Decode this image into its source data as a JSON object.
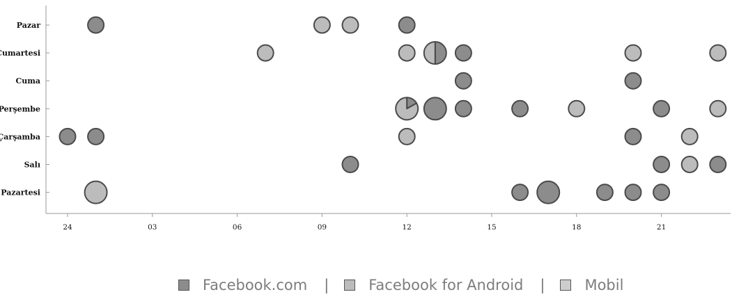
{
  "chart_data": {
    "type": "scatter",
    "title": "",
    "xlabel": "",
    "ylabel": "",
    "x_ticks": [
      "24",
      "03",
      "06",
      "09",
      "12",
      "15",
      "18",
      "21"
    ],
    "x_tick_hours": [
      0,
      3,
      6,
      9,
      12,
      15,
      18,
      21
    ],
    "xlim": [
      -0.8,
      23.8
    ],
    "y_categories": [
      "Pazar",
      "Cumartesi",
      "Cuma",
      "Perşembe",
      "Çarşamba",
      "Salı",
      "Pazartesi"
    ],
    "grid": false,
    "legend_position": "bottom",
    "colors": {
      "Facebook.com": "#8c8c8c",
      "Facebook for Android": "#bcbcbc",
      "Mobil": "#cdcdcd",
      "outline": "#4a4a4a"
    },
    "series": [
      {
        "name": "Facebook.com",
        "points": [
          {
            "day": "Pazar",
            "hour": 1,
            "count": 1
          },
          {
            "day": "Pazar",
            "hour": 12,
            "count": 1
          },
          {
            "day": "Cumartesi",
            "hour": 14,
            "count": 1
          },
          {
            "day": "Cuma",
            "hour": 14,
            "count": 1
          },
          {
            "day": "Cuma",
            "hour": 20,
            "count": 1
          },
          {
            "day": "Perşembe",
            "hour": 13,
            "count": 2
          },
          {
            "day": "Perşembe",
            "hour": 14,
            "count": 1
          },
          {
            "day": "Perşembe",
            "hour": 16,
            "count": 1
          },
          {
            "day": "Perşembe",
            "hour": 21,
            "count": 1
          },
          {
            "day": "Çarşamba",
            "hour": 0,
            "count": 1
          },
          {
            "day": "Çarşamba",
            "hour": 1,
            "count": 1
          },
          {
            "day": "Çarşamba",
            "hour": 20,
            "count": 1
          },
          {
            "day": "Salı",
            "hour": 10,
            "count": 1
          },
          {
            "day": "Salı",
            "hour": 21,
            "count": 1
          },
          {
            "day": "Salı",
            "hour": 23,
            "count": 1
          },
          {
            "day": "Pazartesi",
            "hour": 16,
            "count": 1
          },
          {
            "day": "Pazartesi",
            "hour": 17,
            "count": 2
          },
          {
            "day": "Pazartesi",
            "hour": 19,
            "count": 1
          },
          {
            "day": "Pazartesi",
            "hour": 20,
            "count": 1
          },
          {
            "day": "Pazartesi",
            "hour": 21,
            "count": 1
          }
        ]
      },
      {
        "name": "Facebook for Android",
        "points": [
          {
            "day": "Pazar",
            "hour": 9,
            "count": 1
          },
          {
            "day": "Pazar",
            "hour": 10,
            "count": 1
          },
          {
            "day": "Cumartesi",
            "hour": 7,
            "count": 1
          },
          {
            "day": "Cumartesi",
            "hour": 12,
            "count": 1
          },
          {
            "day": "Cumartesi",
            "hour": 20,
            "count": 1
          },
          {
            "day": "Cumartesi",
            "hour": 23,
            "count": 1
          },
          {
            "day": "Perşembe",
            "hour": 18,
            "count": 1
          },
          {
            "day": "Perşembe",
            "hour": 23,
            "count": 1
          },
          {
            "day": "Çarşamba",
            "hour": 12,
            "count": 1
          },
          {
            "day": "Çarşamba",
            "hour": 22,
            "count": 1
          },
          {
            "day": "Salı",
            "hour": 22,
            "count": 1
          },
          {
            "day": "Pazartesi",
            "hour": 1,
            "count": 2
          }
        ]
      },
      {
        "name": "Mobil",
        "points": []
      }
    ],
    "pies": [
      {
        "day": "Cumartesi",
        "hour": 13,
        "slices": {
          "Facebook.com": 0.5,
          "Facebook for Android": 0.5
        }
      },
      {
        "day": "Perşembe",
        "hour": 12,
        "slices": {
          "Facebook.com": 0.167,
          "Facebook for Android": 0.833
        }
      }
    ]
  },
  "legend": {
    "items": [
      {
        "label": "Facebook.com",
        "color": "#8c8c8c"
      },
      {
        "label": "Facebook for Android",
        "color": "#bcbcbc"
      },
      {
        "label": "Mobil",
        "color": "#cdcdcd"
      }
    ],
    "separator": "|"
  }
}
